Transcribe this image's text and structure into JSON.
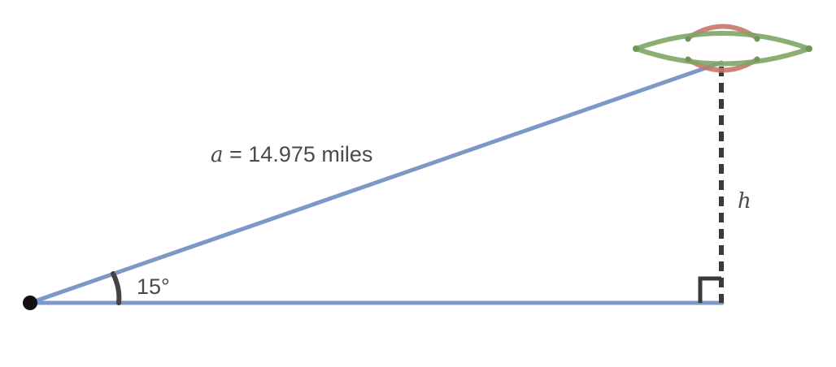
{
  "diagram": {
    "hypotenuse_label": {
      "variable": "a",
      "text": " = 14.975 miles"
    },
    "angle_label": "15°",
    "height_label": "h",
    "angle_degrees": 15,
    "hypotenuse_miles": 14.975,
    "colors": {
      "triangle_sides": "#7b98c6",
      "height_line": "#3a3a3a",
      "angle_arc": "#444444",
      "observer_point": "#111111",
      "ufo_body": "#7ea566",
      "ufo_dome": "#c8746c"
    },
    "icons": {
      "observer": "observer-point",
      "object": "ufo-icon"
    }
  }
}
